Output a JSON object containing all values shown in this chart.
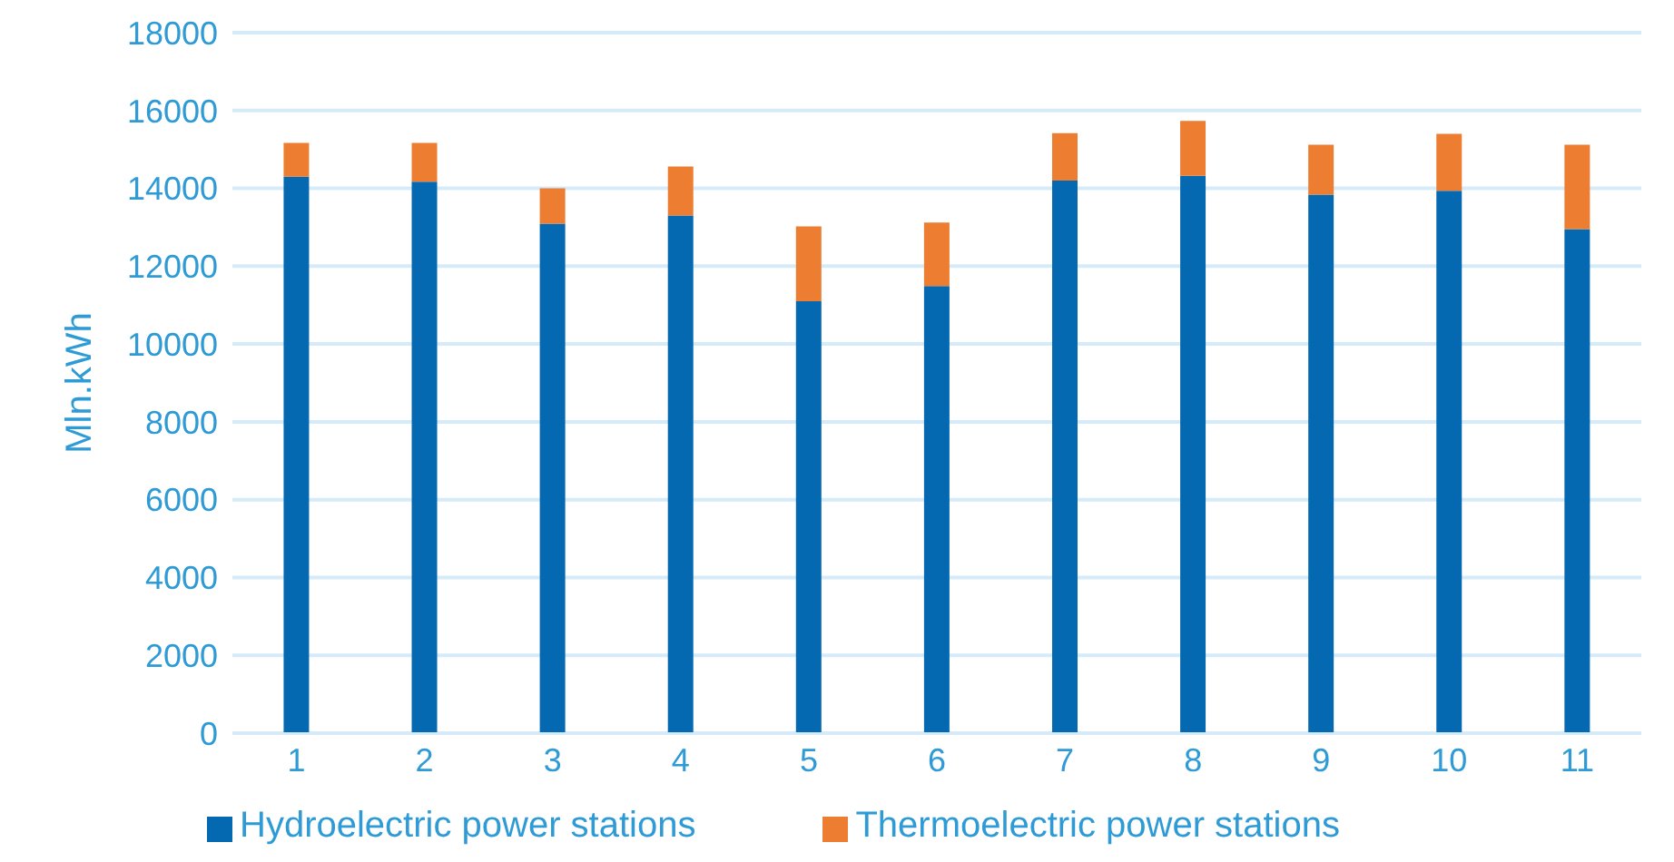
{
  "chart_data": {
    "type": "bar",
    "stacked": true,
    "ylabel": "Mln.kWh",
    "categories": [
      "1",
      "2",
      "3",
      "4",
      "5",
      "6",
      "7",
      "8",
      "9",
      "10",
      "11"
    ],
    "series": [
      {
        "name": "Hydroelectric power stations",
        "color": "#0469b1",
        "values": [
          14300,
          14170,
          13090,
          13300,
          11100,
          11490,
          14200,
          14320,
          13840,
          13940,
          12950
        ]
      },
      {
        "name": "Thermoelectric power stations",
        "color": "#ed7d31",
        "values": [
          870,
          1000,
          910,
          1260,
          1920,
          1630,
          1220,
          1410,
          1280,
          1460,
          2170
        ]
      }
    ],
    "ylim": [
      0,
      18000
    ],
    "yticks": [
      0,
      2000,
      4000,
      6000,
      8000,
      10000,
      12000,
      14000,
      16000,
      18000
    ],
    "grid": "y",
    "legend": "bottom"
  }
}
